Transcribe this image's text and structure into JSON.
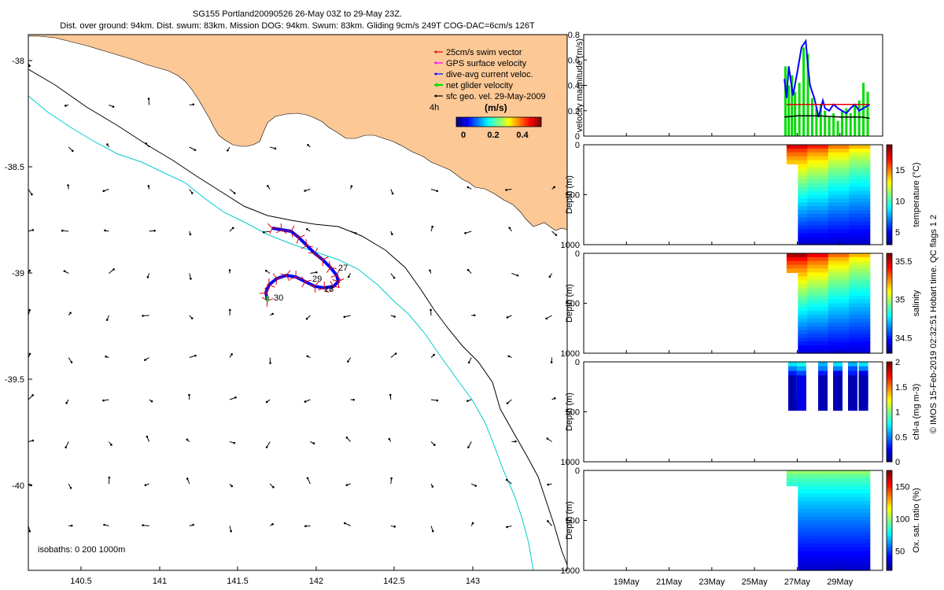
{
  "header": {
    "title_line1": "SG155 Portland20090526 26-May 03Z to 29-May 23Z.",
    "title_line2": "Dist. over ground: 94km. Dist. swum: 83km. Mission DOG: 94km. Swum: 83km. Gliding 9cm/s 249T COG-DAC=6cm/s 126T"
  },
  "map": {
    "x_ticks": [
      "140.5",
      "141",
      "141.5",
      "142",
      "142.5",
      "143"
    ],
    "y_ticks": [
      "-38",
      "-38.5",
      "-39",
      "-39.5",
      "-40"
    ],
    "isobaths_label": "isobaths: 0   200   1000m",
    "legend": [
      {
        "label": "25cm/s swim vector",
        "color": "#e00000"
      },
      {
        "label": "GPS surface velocity",
        "color": "#ff00ff"
      },
      {
        "label": "dive-avg current veloc.",
        "color": "#0000ff"
      },
      {
        "label": "net glider velocity",
        "color": "#00dd00"
      },
      {
        "label": "sfc geo. vel. 29-May-2009",
        "color": "#000000"
      }
    ],
    "legend_extra": "4h",
    "colorbar_title": "(m/s)",
    "colorbar_ticks": [
      "0",
      "0.2",
      "0.4"
    ],
    "day_labels": [
      "27",
      "28",
      "29",
      "30"
    ],
    "colors": {
      "land": "#fbc896",
      "isobath_200": "#00cccc",
      "isobath_1000": "#000000"
    }
  },
  "chart_data": [
    {
      "type": "line",
      "ylabel": "velocity magnitude (m/s)",
      "yticks": [
        "0",
        "0.2",
        "0.4",
        "0.6",
        "0.8"
      ],
      "ylim": [
        0,
        0.8
      ],
      "xlim_days": [
        17,
        31
      ],
      "series": [
        {
          "color": "#0000ff",
          "x": [
            26.4,
            26.5,
            26.6,
            26.8,
            27.0,
            27.2,
            27.4,
            27.5,
            27.6,
            27.8,
            28.0,
            28.2,
            28.3,
            28.5,
            28.7,
            28.9,
            29.1,
            29.3,
            29.5,
            29.7,
            29.9,
            30.1,
            30.4
          ],
          "y": [
            0.45,
            0.3,
            0.55,
            0.32,
            0.5,
            0.7,
            0.75,
            0.55,
            0.4,
            0.3,
            0.15,
            0.28,
            0.22,
            0.2,
            0.25,
            0.22,
            0.2,
            0.18,
            0.22,
            0.25,
            0.2,
            0.22,
            0.25
          ]
        },
        {
          "color": "#e00000",
          "x": [
            26.5,
            30.4
          ],
          "y": [
            0.25,
            0.25
          ]
        },
        {
          "color": "#000000",
          "x": [
            26.4,
            27.0,
            28.0,
            29.0,
            30.0,
            30.4
          ],
          "y": [
            0.15,
            0.16,
            0.16,
            0.15,
            0.15,
            0.14
          ]
        }
      ],
      "bars": {
        "color": "#00dd00",
        "x": [
          26.45,
          26.6,
          26.75,
          26.9,
          27.1,
          27.3,
          27.5,
          27.7,
          27.9,
          28.1,
          28.3,
          28.5,
          28.7,
          28.9,
          29.1,
          29.3,
          29.5,
          29.7,
          29.9,
          30.1,
          30.3
        ],
        "y": [
          0.55,
          0.4,
          0.48,
          0.35,
          0.42,
          0.7,
          0.65,
          0.3,
          0.22,
          0.25,
          0.2,
          0.15,
          0.18,
          0.12,
          0.2,
          0.22,
          0.18,
          0.25,
          0.28,
          0.42,
          0.35
        ]
      }
    },
    {
      "type": "heatmap",
      "ylabel": "Depth (m)",
      "yticks": [
        "0",
        "500",
        "1000"
      ],
      "colorbar_label": "temperature (°C)",
      "colorbar_ticks": [
        "5",
        "10",
        "15"
      ],
      "colorbar_range": [
        3,
        19
      ],
      "x_start_day": 26.5,
      "x_end_day": 30.4,
      "top_values": [
        17.5,
        16.5,
        15.0,
        14.0
      ],
      "bottom_value": 4.0,
      "surface_layer_depth": 150
    },
    {
      "type": "heatmap",
      "ylabel": "Depth (m)",
      "yticks": [
        "0",
        "500",
        "1000"
      ],
      "colorbar_label": "salinity",
      "colorbar_ticks": [
        "34.5",
        "35",
        "35.5"
      ],
      "colorbar_range": [
        34.3,
        35.6
      ],
      "x_start_day": 26.5,
      "x_end_day": 30.4,
      "top_values": [
        35.55,
        35.45,
        35.3,
        35.2
      ],
      "bottom_value": 34.4,
      "surface_layer_depth": 150
    },
    {
      "type": "heatmap",
      "ylabel": "Depth (m)",
      "yticks": [
        "0",
        "500",
        "1000"
      ],
      "colorbar_label": "chl-a (mg m-3)",
      "colorbar_ticks": [
        "0",
        "0.5",
        "1",
        "1.5",
        "2"
      ],
      "colorbar_range": [
        0,
        2
      ],
      "xticks": [
        "19May",
        "21May",
        "23May",
        "25May",
        "27May",
        "29May"
      ],
      "patches": [
        {
          "x": 26.8,
          "values": [
            0.7,
            0.5,
            0.3,
            0.1
          ]
        },
        {
          "x": 27.2,
          "values": [
            0.8,
            0.6,
            0.4,
            0.2
          ]
        },
        {
          "x": 28.2,
          "values": [
            0.6,
            0.5,
            0.3,
            0.1
          ]
        },
        {
          "x": 28.9,
          "values": [
            0.7,
            0.5,
            0.2,
            0.1
          ]
        },
        {
          "x": 29.6,
          "values": [
            0.6,
            0.4,
            0.3,
            0.1
          ]
        },
        {
          "x": 30.1,
          "values": [
            0.7,
            0.5,
            0.2,
            0.1
          ]
        }
      ]
    },
    {
      "type": "heatmap",
      "ylabel": "Depth (m)",
      "yticks": [
        "0",
        "500",
        "1000"
      ],
      "colorbar_label": "Ox. sat. ratio (%)",
      "colorbar_ticks": [
        "50",
        "100",
        "150"
      ],
      "colorbar_range": [
        20,
        175
      ],
      "x_start_day": 26.5,
      "x_end_day": 30.4,
      "top_values": [
        100,
        100,
        100,
        100
      ],
      "bottom_value": 30,
      "surface_layer_depth": 100
    }
  ],
  "xaxis": {
    "ticks": [
      "19May",
      "21May",
      "23May",
      "25May",
      "27May",
      "29May"
    ]
  },
  "side_note": "© IMOS 15-Feb-2019 02:32:51 Hobart time. QC flags 1 2"
}
